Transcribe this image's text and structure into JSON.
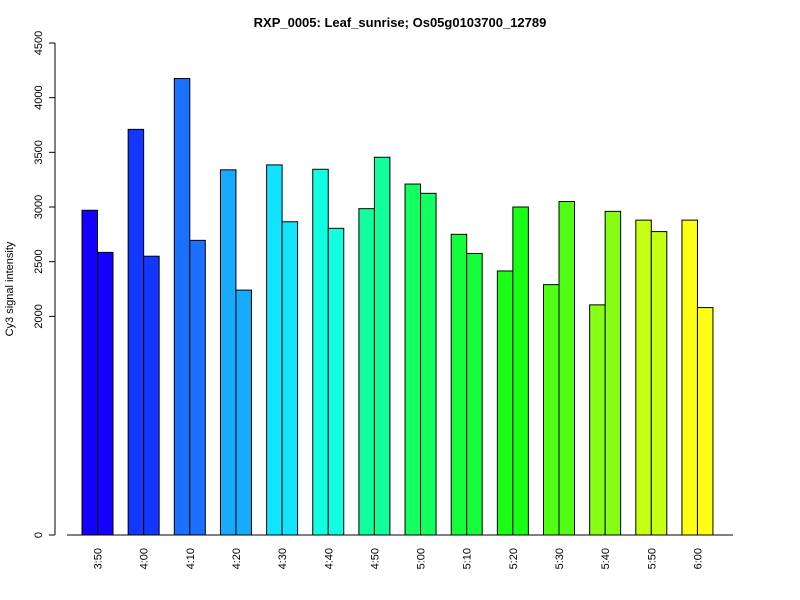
{
  "chart_data": {
    "type": "bar",
    "title": "RXP_0005: Leaf_sunrise; Os05g0103700_12789",
    "xlabel": "",
    "ylabel": "Cy3 signal intensity",
    "ylim": [
      0,
      4500
    ],
    "yticks": [
      0,
      2000,
      2500,
      3000,
      3500,
      4000,
      4500
    ],
    "categories": [
      "3:50",
      "4:00",
      "4:10",
      "4:20",
      "4:30",
      "4:40",
      "4:50",
      "5:00",
      "5:10",
      "5:20",
      "5:30",
      "5:40",
      "5:50",
      "6:00"
    ],
    "group_colors": [
      "#1400ff",
      "#1238ff",
      "#1a70ff",
      "#17aaff",
      "#11e4ff",
      "#10ffe0",
      "#12ff9e",
      "#14ff60",
      "#14ff3a",
      "#1aff16",
      "#50ff14",
      "#86ff14",
      "#c4ff14",
      "#ffff14"
    ],
    "series": [
      {
        "values": [
          2970,
          3710,
          4175,
          3340,
          3385,
          3345,
          2985,
          3210,
          2750,
          2415,
          2290,
          2105,
          2880,
          2880
        ]
      },
      {
        "values": [
          2585,
          2550,
          2695,
          2240,
          2865,
          2805,
          3455,
          3125,
          2575,
          3000,
          3050,
          2960,
          2775,
          2080
        ]
      }
    ],
    "grid": false,
    "legend": "none"
  }
}
